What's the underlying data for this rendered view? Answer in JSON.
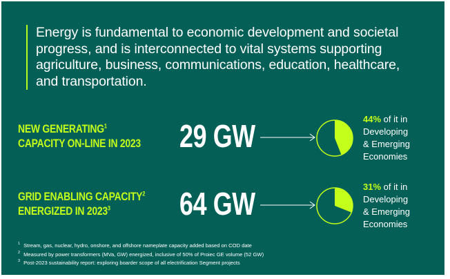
{
  "colors": {
    "background": "#045f57",
    "accent": "#c3ff1a",
    "text": "#ffffff"
  },
  "intro": "Energy is fundamental to economic development and societal progress, and is interconnected to vital systems supporting agriculture, business, communications, education, healthcare, and transportation.",
  "stats": [
    {
      "label_line1": "NEW GENERATING",
      "label_sup1": "1",
      "label_line2": "CAPACITY ON-LINE IN 2023",
      "label_sup2": "",
      "value": "29 GW",
      "pie_fraction": 0.44,
      "percent": "44%",
      "desc_line1": "of it in",
      "desc_line2": "Developing",
      "desc_line3": "& Emerging",
      "desc_line4": "Economies",
      "arrow_icon": "arrow-right-icon"
    },
    {
      "label_line1": "GRID ENABLING CAPACITY",
      "label_sup1": "2",
      "label_line2": "ENERGIZED IN 2023",
      "label_sup2": "3",
      "value": "64 GW",
      "pie_fraction": 0.31,
      "percent": "31%",
      "desc_line1": "of it in",
      "desc_line2": "Developing",
      "desc_line3": "& Emerging",
      "desc_line4": "Economies",
      "arrow_icon": "arrow-right-icon"
    }
  ],
  "footnotes": [
    {
      "mark": "1",
      "text": "Stream, gas, nuclear, hydro, onshore, and offshore nameplate capacity added based on COD date"
    },
    {
      "mark": "2",
      "text": "Measured by power transformers (MVa, GW) energized, inclusive of 50% of Proiec GE volume (52 GW)"
    },
    {
      "mark": "3",
      "text": "Post-2023 sustainability report: exploring boarder scope of all electrification Segment projects"
    }
  ]
}
